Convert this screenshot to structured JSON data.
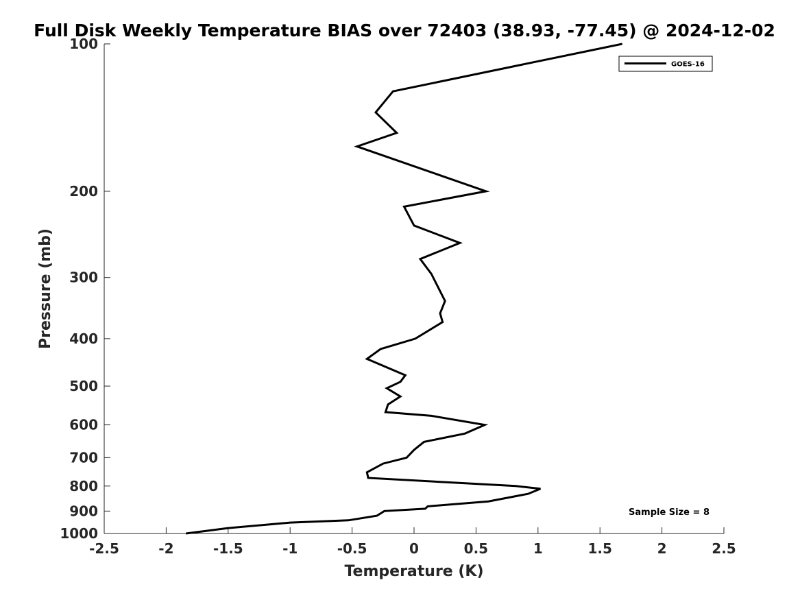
{
  "chart_data": {
    "type": "line",
    "title": "Full Disk Weekly Temperature BIAS over 72403 (38.93, -77.45) @ 2024-12-02",
    "xlabel": "Temperature (K)",
    "ylabel": "Pressure (mb)",
    "xlim": [
      -2.5,
      2.5
    ],
    "ylim": [
      100,
      1000
    ],
    "yscale": "log",
    "yaxis_reversed": true,
    "grid": false,
    "legend_position": "top-right",
    "x_ticks": [
      "-2.5",
      "-2",
      "-1.5",
      "-1",
      "-0.5",
      "0",
      "0.5",
      "1",
      "1.5",
      "2",
      "2.5"
    ],
    "x_tick_values": [
      -2.5,
      -2,
      -1.5,
      -1,
      -0.5,
      0,
      0.5,
      1,
      1.5,
      2,
      2.5
    ],
    "y_ticks": [
      "100",
      "200",
      "300",
      "400",
      "500",
      "600",
      "700",
      "800",
      "900",
      "1000"
    ],
    "y_tick_values": [
      100,
      200,
      300,
      400,
      500,
      600,
      700,
      800,
      900,
      1000
    ],
    "series": [
      {
        "name": "GOES-16",
        "color": "#000000",
        "x": [
          1.68,
          -0.17,
          -0.31,
          -0.14,
          -0.46,
          0.58,
          -0.08,
          0.0,
          0.37,
          0.05,
          0.14,
          0.25,
          0.21,
          0.23,
          0.01,
          -0.27,
          -0.38,
          -0.07,
          -0.11,
          -0.22,
          -0.11,
          -0.21,
          -0.23,
          0.14,
          0.57,
          0.41,
          0.08,
          0.0,
          -0.06,
          -0.25,
          -0.38,
          -0.37,
          0.82,
          1.02,
          0.92,
          0.6,
          0.11,
          0.09,
          -0.24,
          -0.3,
          -0.53,
          -1.0,
          -1.5,
          -1.84
        ],
        "y": [
          100,
          125,
          138,
          152,
          162,
          200,
          215,
          235,
          255,
          275,
          295,
          335,
          355,
          370,
          400,
          420,
          440,
          475,
          490,
          505,
          525,
          545,
          565,
          575,
          600,
          625,
          650,
          675,
          700,
          720,
          750,
          770,
          800,
          810,
          830,
          860,
          880,
          890,
          900,
          920,
          940,
          950,
          975,
          1000
        ]
      }
    ],
    "annotations": [
      "Sample Size = 8"
    ]
  }
}
